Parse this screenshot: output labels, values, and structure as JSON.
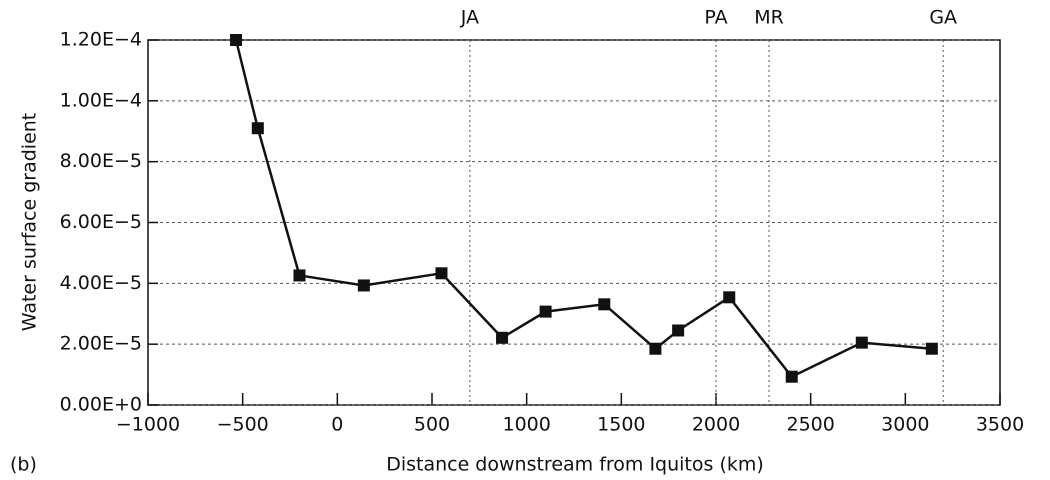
{
  "chart_data": {
    "type": "line",
    "panel_label": "(b)",
    "x_label": "Distance downstream from Iquitos (km)",
    "y_label": "Water surface gradient",
    "x": [
      -535,
      -420,
      -200,
      140,
      550,
      870,
      1100,
      1410,
      1680,
      1800,
      2070,
      2400,
      2770,
      3140
    ],
    "series": [
      {
        "name": "Water surface gradient",
        "color": "#111111",
        "values": [
          0.00012,
          9.1e-05,
          4.26e-05,
          3.93e-05,
          4.33e-05,
          2.21e-05,
          3.07e-05,
          3.31e-05,
          1.85e-05,
          2.45e-05,
          3.54e-05,
          9.3e-06,
          2.05e-05,
          1.85e-05
        ]
      }
    ],
    "xlim": [
      -1000,
      3500
    ],
    "ylim": [
      0,
      0.00012
    ],
    "xticks": [
      {
        "value": -1000,
        "label": "−1000"
      },
      {
        "value": -500,
        "label": "−500"
      },
      0,
      500,
      1000,
      1500,
      2000,
      2500,
      3000,
      3500
    ],
    "yticks": [
      {
        "value": 0,
        "label": "0.00E+0"
      },
      {
        "value": 2e-05,
        "label": "2.00E−5"
      },
      {
        "value": 4e-05,
        "label": "4.00E−5"
      },
      {
        "value": 6e-05,
        "label": "6.00E−5"
      },
      {
        "value": 8e-05,
        "label": "8.00E−5"
      },
      {
        "value": 0.0001,
        "label": "1.00E−4"
      },
      {
        "value": 0.00012,
        "label": "1.20E−4"
      }
    ],
    "grid": true,
    "annotations": [
      {
        "text": "JA",
        "x": 700
      },
      {
        "text": "PA",
        "x": 2000
      },
      {
        "text": "MR",
        "x": 2280
      },
      {
        "text": "GA",
        "x": 3200
      }
    ]
  }
}
